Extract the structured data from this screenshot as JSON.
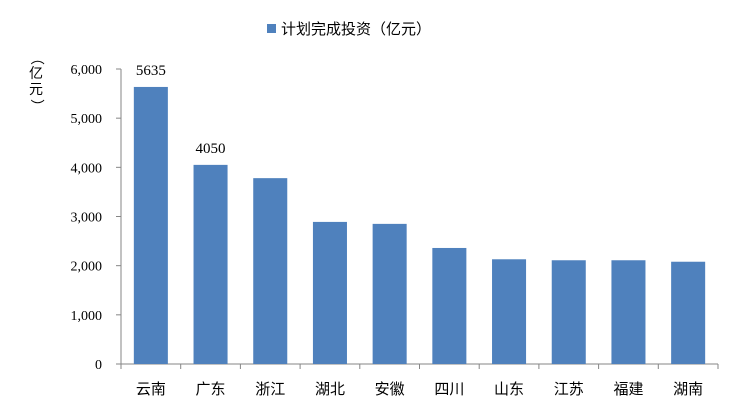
{
  "chart_data": {
    "type": "bar",
    "legend": "计划完成投资（亿元）",
    "legend_position": "top",
    "ylabel": "（亿元）",
    "categories": [
      "云南",
      "广东",
      "浙江",
      "湖北",
      "安徽",
      "四川",
      "山东",
      "江苏",
      "福建",
      "湖南"
    ],
    "series": [
      {
        "name": "计划完成投资（亿元）",
        "values": [
          5635,
          4050,
          3780,
          2890,
          2850,
          2360,
          2130,
          2110,
          2110,
          2080
        ]
      }
    ],
    "data_labels": {
      "0": "5635",
      "1": "4050"
    },
    "ylim": [
      0,
      6000
    ],
    "yticks": [
      0,
      1000,
      2000,
      3000,
      4000,
      5000,
      6000
    ],
    "ytick_labels": [
      "0",
      "1,000",
      "2,000",
      "3,000",
      "4,000",
      "5,000",
      "6,000"
    ],
    "grid": false,
    "bar_color": "#4f81bd"
  }
}
